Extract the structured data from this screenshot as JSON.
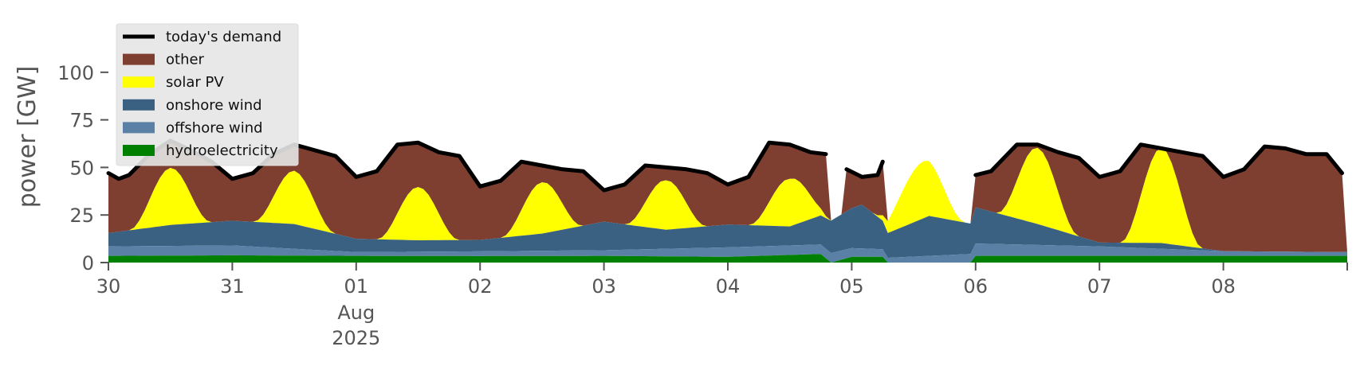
{
  "chart_data": {
    "type": "area",
    "ylabel": "power [GW]",
    "ylim": [
      0,
      120
    ],
    "yticks": [
      0,
      25,
      50,
      75,
      100
    ],
    "xlim": [
      "2025-07-30T00:00",
      "2025-08-09T00:00"
    ],
    "xticks": [
      {
        "date": "2025-07-30",
        "label": "30"
      },
      {
        "date": "2025-07-31",
        "label": "31"
      },
      {
        "date": "2025-08-01",
        "label": "01",
        "sublabels": [
          "Aug",
          "2025"
        ]
      },
      {
        "date": "2025-08-02",
        "label": "02"
      },
      {
        "date": "2025-08-03",
        "label": "03"
      },
      {
        "date": "2025-08-04",
        "label": "04"
      },
      {
        "date": "2025-08-05",
        "label": "05"
      },
      {
        "date": "2025-08-06",
        "label": "06"
      },
      {
        "date": "2025-08-07",
        "label": "07"
      },
      {
        "date": "2025-08-08",
        "label": "08"
      }
    ],
    "grid": false,
    "legend_position": "upper-left",
    "stack_order": [
      "hydroelectricity",
      "offshore wind",
      "onshore wind",
      "solar PV",
      "other"
    ],
    "series": [
      {
        "name": "hydroelectricity",
        "color": "#008000",
        "points": [
          [
            "2025-07-30T00:00",
            3.5
          ],
          [
            "2025-07-31T00:00",
            3.8
          ],
          [
            "2025-08-01T00:00",
            3.5
          ],
          [
            "2025-08-02T00:00",
            3.4
          ],
          [
            "2025-08-03T00:00",
            3.5
          ],
          [
            "2025-08-04T00:00",
            3.0
          ],
          [
            "2025-08-04T18:00",
            4.5
          ],
          [
            "2025-08-04T20:00",
            0
          ],
          [
            "2025-08-05T00:00",
            3.0
          ],
          [
            "2025-08-05T06:00",
            3.0
          ],
          [
            "2025-08-05T07:00",
            0
          ],
          [
            "2025-08-05T23:00",
            0
          ],
          [
            "2025-08-06T00:00",
            3.5
          ],
          [
            "2025-08-07T00:00",
            3.5
          ],
          [
            "2025-08-08T00:00",
            3.5
          ],
          [
            "2025-08-08T23:00",
            3.5
          ]
        ]
      },
      {
        "name": "offshore wind",
        "color": "#5b80a6",
        "points": [
          [
            "2025-07-30T00:00",
            5.0
          ],
          [
            "2025-07-31T00:00",
            5.2
          ],
          [
            "2025-08-01T00:00",
            2.0
          ],
          [
            "2025-08-02T00:00",
            2.5
          ],
          [
            "2025-08-03T00:00",
            3.0
          ],
          [
            "2025-08-04T00:00",
            5.0
          ],
          [
            "2025-08-04T18:00",
            5.0
          ],
          [
            "2025-08-04T20:00",
            5.0
          ],
          [
            "2025-08-05T06:00",
            4.0
          ],
          [
            "2025-08-05T07:00",
            2.5
          ],
          [
            "2025-08-05T15:00",
            3.5
          ],
          [
            "2025-08-05T23:00",
            4.5
          ],
          [
            "2025-08-06T00:00",
            6.5
          ],
          [
            "2025-08-07T00:00",
            5.0
          ],
          [
            "2025-08-08T00:00",
            2.5
          ],
          [
            "2025-08-08T23:00",
            2.0
          ]
        ]
      },
      {
        "name": "onshore wind",
        "color": "#3a6082",
        "points": [
          [
            "2025-07-30T00:00",
            7.0
          ],
          [
            "2025-07-30T12:00",
            11.0
          ],
          [
            "2025-07-31T00:00",
            13.0
          ],
          [
            "2025-07-31T12:00",
            13.0
          ],
          [
            "2025-08-01T00:00",
            7.0
          ],
          [
            "2025-08-01T12:00",
            6.0
          ],
          [
            "2025-08-02T00:00",
            6.0
          ],
          [
            "2025-08-02T12:00",
            9.0
          ],
          [
            "2025-08-03T00:00",
            15.0
          ],
          [
            "2025-08-03T12:00",
            10.0
          ],
          [
            "2025-08-04T00:00",
            12.0
          ],
          [
            "2025-08-04T12:00",
            10.0
          ],
          [
            "2025-08-04T20:00",
            17.0
          ],
          [
            "2025-08-05T02:00",
            23.0
          ],
          [
            "2025-08-05T07:00",
            13.0
          ],
          [
            "2025-08-05T15:00",
            21.0
          ],
          [
            "2025-08-05T23:00",
            16.0
          ],
          [
            "2025-08-06T00:00",
            19.0
          ],
          [
            "2025-08-06T12:00",
            11.0
          ],
          [
            "2025-08-06T20:00",
            5.0
          ],
          [
            "2025-08-07T00:00",
            2.0
          ],
          [
            "2025-08-07T12:00",
            3.0
          ],
          [
            "2025-08-08T00:00",
            0
          ],
          [
            "2025-08-08T23:00",
            0
          ]
        ]
      },
      {
        "name": "solar PV",
        "color": "#ffff00",
        "points": [
          [
            "2025-07-30T04:00",
            0
          ],
          [
            "2025-07-30T12:00",
            30
          ],
          [
            "2025-07-30T20:00",
            0
          ],
          [
            "2025-07-31T04:00",
            0
          ],
          [
            "2025-07-31T12:00",
            28
          ],
          [
            "2025-07-31T20:00",
            0
          ],
          [
            "2025-08-01T04:00",
            0
          ],
          [
            "2025-08-01T12:00",
            28
          ],
          [
            "2025-08-01T20:00",
            0
          ],
          [
            "2025-08-02T04:00",
            0
          ],
          [
            "2025-08-02T12:00",
            27
          ],
          [
            "2025-08-02T20:00",
            0
          ],
          [
            "2025-08-03T04:00",
            0
          ],
          [
            "2025-08-03T12:00",
            26
          ],
          [
            "2025-08-03T20:00",
            0
          ],
          [
            "2025-08-04T04:00",
            0
          ],
          [
            "2025-08-04T12:00",
            25
          ],
          [
            "2025-08-04T20:00",
            0
          ],
          [
            "2025-08-05T04:00",
            0
          ],
          [
            "2025-08-05T14:00",
            30
          ],
          [
            "2025-08-05T22:00",
            0
          ],
          [
            "2025-08-06T04:00",
            0
          ],
          [
            "2025-08-06T12:00",
            40
          ],
          [
            "2025-08-06T20:00",
            0
          ],
          [
            "2025-08-07T04:00",
            0
          ],
          [
            "2025-08-07T12:00",
            50
          ],
          [
            "2025-08-07T20:00",
            0
          ]
        ]
      },
      {
        "name": "other",
        "color": "#7f3f30",
        "note": "fills up to the demand line"
      },
      {
        "name": "today's demand",
        "color": "#000000",
        "points": [
          [
            "2025-07-30T00:00",
            47
          ],
          [
            "2025-07-30T02:00",
            44
          ],
          [
            "2025-07-30T04:00",
            46
          ],
          [
            "2025-07-30T08:00",
            57
          ],
          [
            "2025-07-30T12:00",
            64
          ],
          [
            "2025-07-30T16:00",
            59
          ],
          [
            "2025-07-30T20:00",
            53
          ],
          [
            "2025-07-31T00:00",
            44
          ],
          [
            "2025-07-31T04:00",
            47
          ],
          [
            "2025-07-31T08:00",
            57
          ],
          [
            "2025-07-31T12:00",
            62
          ],
          [
            "2025-07-31T16:00",
            59
          ],
          [
            "2025-07-31T20:00",
            56
          ],
          [
            "2025-08-01T00:00",
            45
          ],
          [
            "2025-08-01T04:00",
            48
          ],
          [
            "2025-08-01T08:00",
            62
          ],
          [
            "2025-08-01T12:00",
            63
          ],
          [
            "2025-08-01T16:00",
            58
          ],
          [
            "2025-08-01T20:00",
            56
          ],
          [
            "2025-08-02T00:00",
            40
          ],
          [
            "2025-08-02T04:00",
            43
          ],
          [
            "2025-08-02T08:00",
            53
          ],
          [
            "2025-08-02T12:00",
            51
          ],
          [
            "2025-08-02T16:00",
            49
          ],
          [
            "2025-08-02T20:00",
            48
          ],
          [
            "2025-08-03T00:00",
            38
          ],
          [
            "2025-08-03T04:00",
            41
          ],
          [
            "2025-08-03T08:00",
            51
          ],
          [
            "2025-08-03T12:00",
            50
          ],
          [
            "2025-08-03T16:00",
            49
          ],
          [
            "2025-08-03T20:00",
            47
          ],
          [
            "2025-08-04T00:00",
            41
          ],
          [
            "2025-08-04T04:00",
            45
          ],
          [
            "2025-08-04T08:00",
            63
          ],
          [
            "2025-08-04T12:00",
            62
          ],
          [
            "2025-08-04T16:00",
            58
          ],
          [
            "2025-08-04T19:00",
            57
          ],
          null,
          [
            "2025-08-04T23:00",
            49
          ],
          [
            "2025-08-05T02:00",
            45
          ],
          [
            "2025-08-05T05:00",
            46
          ],
          [
            "2025-08-05T06:00",
            53
          ],
          null,
          [
            "2025-08-06T00:00",
            46
          ],
          [
            "2025-08-06T03:00",
            48
          ],
          [
            "2025-08-06T08:00",
            62
          ],
          [
            "2025-08-06T12:00",
            62
          ],
          [
            "2025-08-06T16:00",
            58
          ],
          [
            "2025-08-06T20:00",
            55
          ],
          [
            "2025-08-07T00:00",
            45
          ],
          [
            "2025-08-07T04:00",
            48
          ],
          [
            "2025-08-07T08:00",
            62
          ],
          [
            "2025-08-07T12:00",
            60
          ],
          [
            "2025-08-07T16:00",
            58
          ],
          [
            "2025-08-07T20:00",
            56
          ],
          [
            "2025-08-08T00:00",
            45
          ],
          [
            "2025-08-08T04:00",
            49
          ],
          [
            "2025-08-08T08:00",
            61
          ],
          [
            "2025-08-08T12:00",
            60
          ],
          [
            "2025-08-08T16:00",
            57
          ],
          [
            "2025-08-08T20:00",
            57
          ],
          [
            "2025-08-08T23:00",
            47
          ]
        ]
      }
    ],
    "legend": [
      {
        "label": "today's demand",
        "color": "#000000",
        "kind": "line"
      },
      {
        "label": "other",
        "color": "#7f3f30",
        "kind": "patch"
      },
      {
        "label": "solar PV",
        "color": "#ffff00",
        "kind": "patch"
      },
      {
        "label": "onshore wind",
        "color": "#3a6082",
        "kind": "patch"
      },
      {
        "label": "offshore wind",
        "color": "#5b80a6",
        "kind": "patch"
      },
      {
        "label": "hydroelectricity",
        "color": "#008000",
        "kind": "patch"
      }
    ]
  }
}
